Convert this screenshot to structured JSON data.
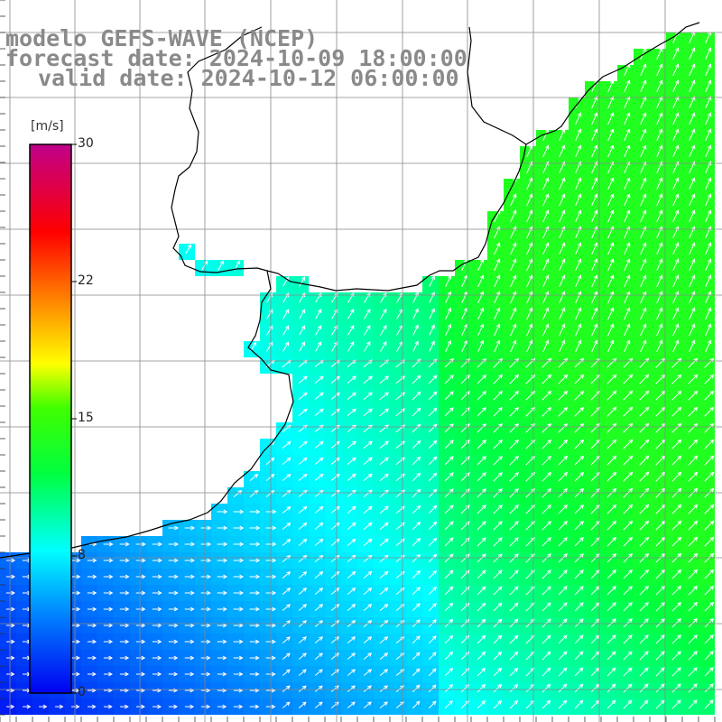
{
  "header": {
    "model": "modelo GEFS-WAVE (NCEP)",
    "forecast": "forecast date: 2024-10-09 18:00:00",
    "valid": "valid date: 2024-10-12 06:00:00"
  },
  "colorbar": {
    "unit": "[m/s]",
    "labels": {
      "max": "30",
      "l22": "22",
      "l15": "15",
      "l8": "8",
      "min": "0"
    },
    "range": [
      0,
      30
    ],
    "colors": [
      "#0000ee",
      "#0080ff",
      "#00ffff",
      "#00ff00",
      "#ffff00",
      "#ff8000",
      "#ff0000",
      "#c00080"
    ]
  },
  "map": {
    "land_color": "#ffffff",
    "coast_color": "#000000",
    "grid_color": "#888888"
  }
}
